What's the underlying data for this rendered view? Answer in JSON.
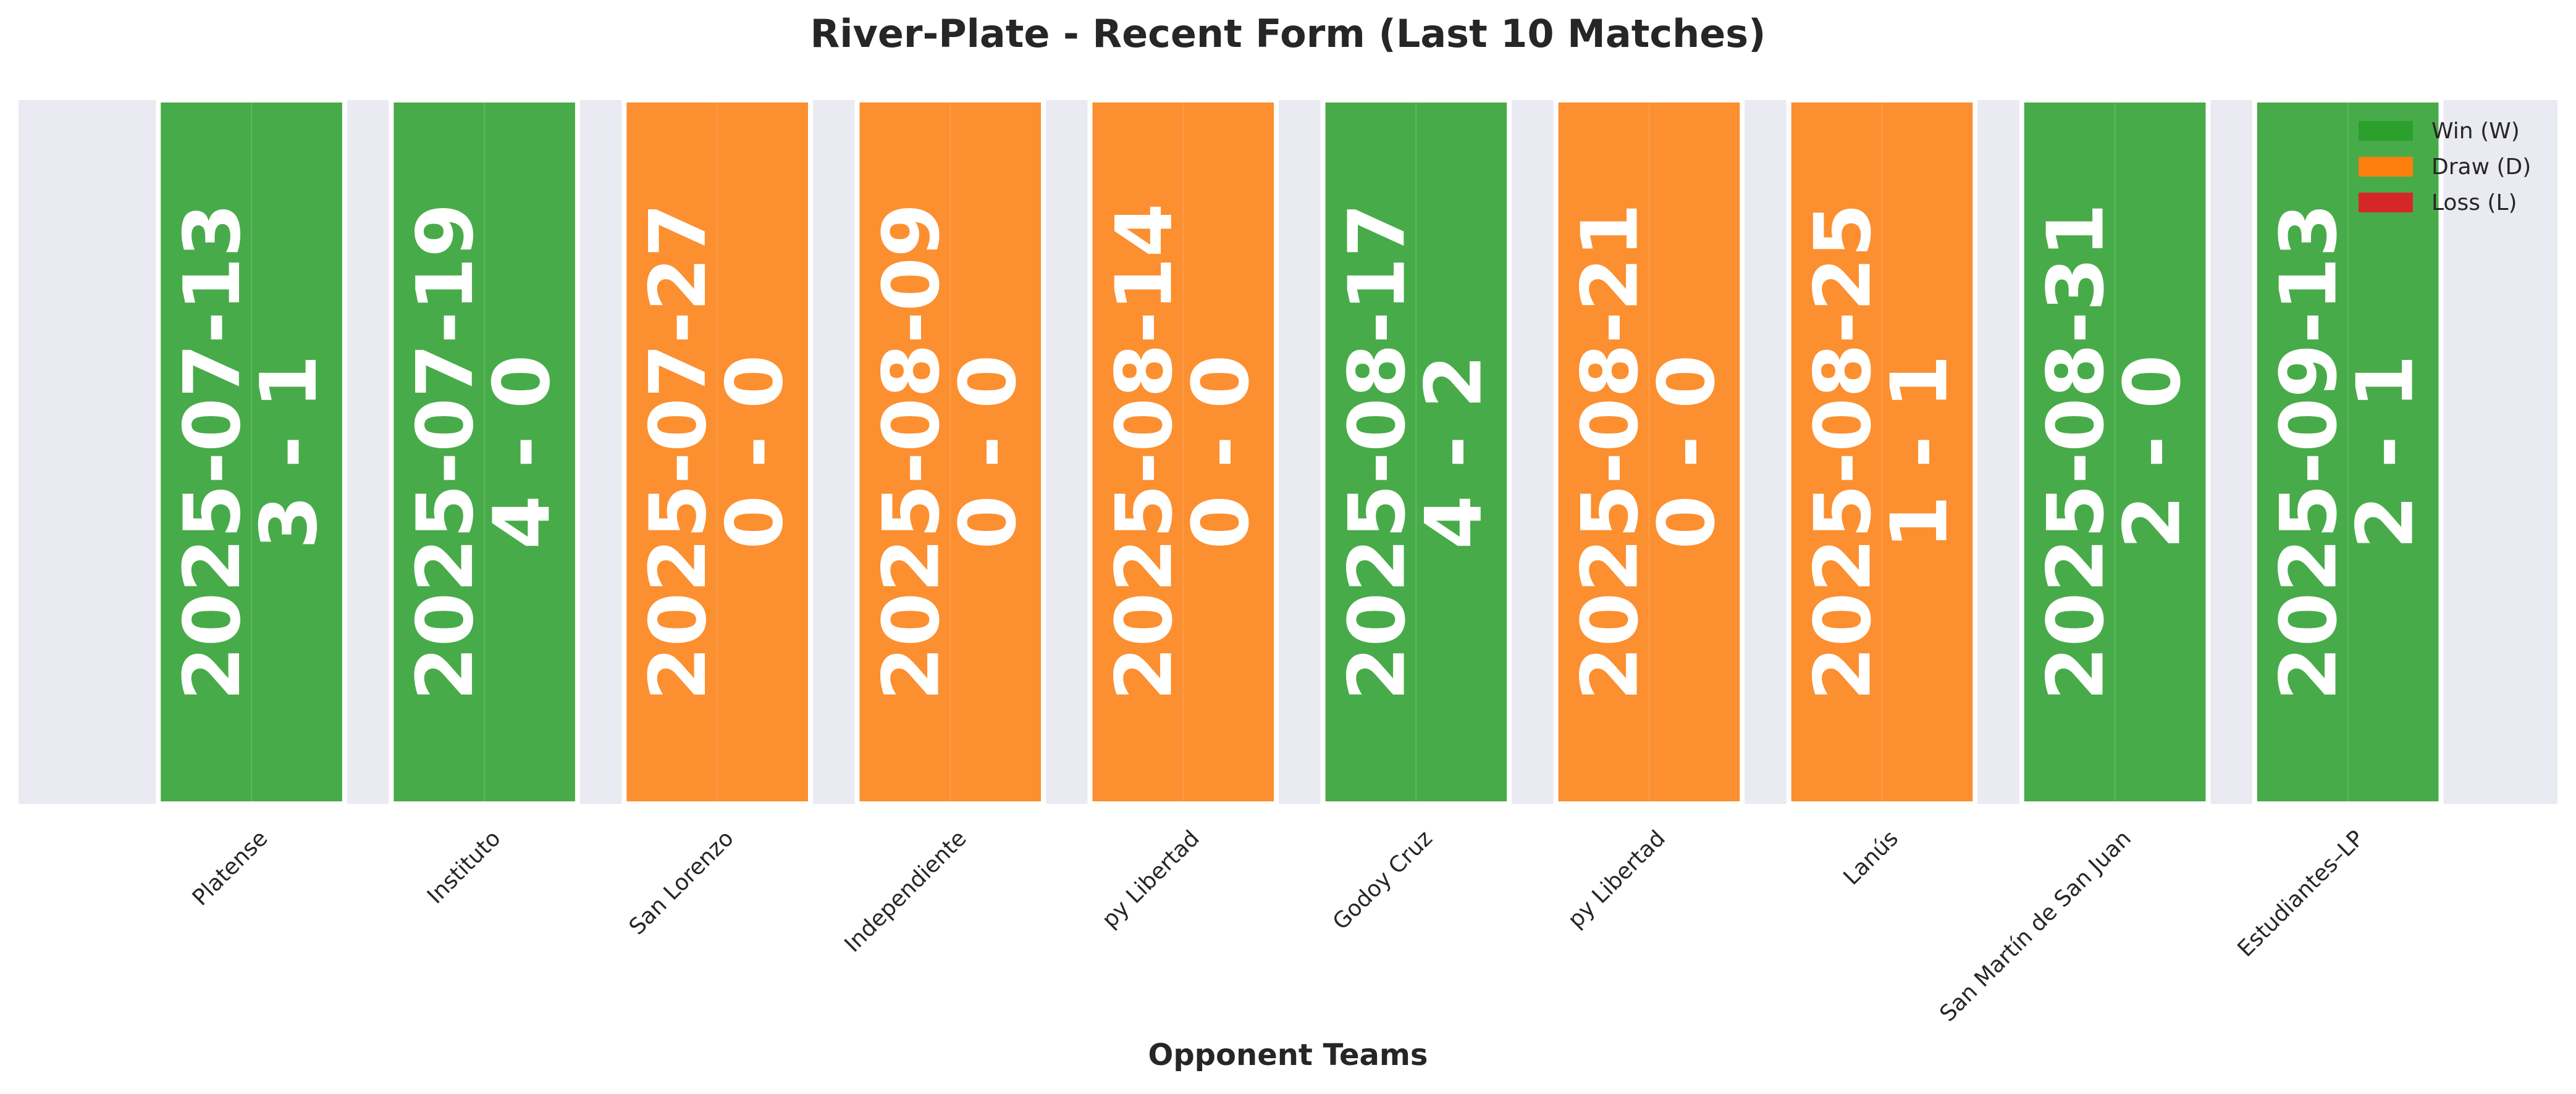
{
  "chart_data": {
    "type": "bar",
    "title": "River-Plate - Recent Form (Last 10 Matches)",
    "xlabel": "Opponent Teams",
    "ylabel": "",
    "grid": true,
    "legend_position": "top-right",
    "colors": {
      "W": "#2ca02c",
      "D": "#ff7f0e",
      "L": "#d62728",
      "background": "#eaeaf2",
      "bar_label": "#ffffff"
    },
    "legend": [
      {
        "key": "W",
        "label": "Win (W)"
      },
      {
        "key": "D",
        "label": "Draw (D)"
      },
      {
        "key": "L",
        "label": "Loss (L)"
      }
    ],
    "categories": [
      "Platense",
      "Instituto",
      "San Lorenzo",
      "Independiente",
      "py Libertad",
      "Godoy Cruz",
      "py Libertad",
      "Lanús",
      "San Martín de San Juan",
      "Estudiantes–LP"
    ],
    "matches": [
      {
        "opponent": "Platense",
        "date": "2025-07-13",
        "score": "3 - 1",
        "result": "W"
      },
      {
        "opponent": "Instituto",
        "date": "2025-07-19",
        "score": "4 - 0",
        "result": "W"
      },
      {
        "opponent": "San Lorenzo",
        "date": "2025-07-27",
        "score": "0 - 0",
        "result": "D"
      },
      {
        "opponent": "Independiente",
        "date": "2025-08-09",
        "score": "0 - 0",
        "result": "D"
      },
      {
        "opponent": "py Libertad",
        "date": "2025-08-14",
        "score": "0 - 0",
        "result": "D"
      },
      {
        "opponent": "Godoy Cruz",
        "date": "2025-08-17",
        "score": "4 - 2",
        "result": "W"
      },
      {
        "opponent": "py Libertad",
        "date": "2025-08-21",
        "score": "0 - 0",
        "result": "D"
      },
      {
        "opponent": "Lanús",
        "date": "2025-08-25",
        "score": "1 - 1",
        "result": "D"
      },
      {
        "opponent": "San Martín de San Juan",
        "date": "2025-08-31",
        "score": "2 - 0",
        "result": "W"
      },
      {
        "opponent": "Estudiantes–LP",
        "date": "2025-09-13",
        "score": "2 - 1",
        "result": "W"
      }
    ],
    "values": [
      1,
      1,
      1,
      1,
      1,
      1,
      1,
      1,
      1,
      1
    ],
    "ylim": [
      0,
      1
    ]
  }
}
